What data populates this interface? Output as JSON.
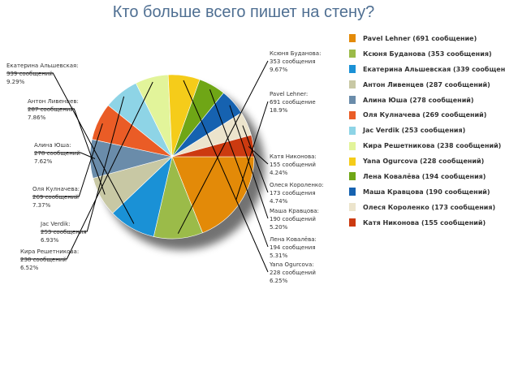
{
  "chart_data": {
    "type": "pie",
    "title": "Кто больше всего пишет на стену?",
    "slices": [
      {
        "name": "Pavel Lehner",
        "value": 691,
        "callout": [
          "Pavel Lehner:",
          "691 сообщение",
          "18.9%"
        ],
        "legend": "Pavel Lehner (691 сообщение)",
        "color": "#e38a08"
      },
      {
        "name": "Ксюня Буданова",
        "value": 353,
        "callout": [
          "Ксюня Буданова:",
          "353 сообщения",
          "9.67%"
        ],
        "legend": "Ксюня Буданова (353 сообщения)",
        "color": "#9bbb49"
      },
      {
        "name": "Екатерина Альшевская",
        "value": 339,
        "callout": [
          "Екатерина Альшевская:",
          "339 сообщений",
          "9.29%"
        ],
        "legend": "Екатерина Альшевская (339 сообщен",
        "color": "#1a91d6"
      },
      {
        "name": "Антон Ливенцев",
        "value": 287,
        "callout": [
          "Антон Ливенцев:",
          "287 сообщений",
          "7.86%"
        ],
        "legend": "Антон Ливенцев (287 сообщений)",
        "color": "#c8c8a4"
      },
      {
        "name": "Алина Юша",
        "value": 278,
        "callout": [
          "Алина Юша:",
          "278 сообщений",
          "7.62%"
        ],
        "legend": "Алина Юша (278 сообщений)",
        "color": "#6a8caa"
      },
      {
        "name": "Оля Кулначева",
        "value": 269,
        "callout": [
          "Оля Кулначева:",
          "269 сообщений",
          "7.37%"
        ],
        "legend": "Оля Кулначева (269 сообщений)",
        "color": "#ea5c26"
      },
      {
        "name": "Jac Verdik",
        "value": 253,
        "callout": [
          "Jac Verdik:",
          "253 сообщения",
          "6.93%"
        ],
        "legend": "Jac Verdik (253 сообщения)",
        "color": "#8ed4e6"
      },
      {
        "name": "Кира Решетникова",
        "value": 238,
        "callout": [
          "Кира Решетникова:",
          "238 сообщений",
          "6.52%"
        ],
        "legend": "Кира Решетникова (238 сообщений)",
        "color": "#e2f49a"
      },
      {
        "name": "Yana Ogurcova",
        "value": 228,
        "callout": [
          "Yana Ogurcova:",
          "228 сообщений",
          "6.25%"
        ],
        "legend": "Yana Ogurcova (228 сообщений)",
        "color": "#f5cc1a"
      },
      {
        "name": "Лена Ковалёва",
        "value": 194,
        "callout": [
          "Лена Ковалёва:",
          "194 сообщения",
          "5.31%"
        ],
        "legend": "Лена Ковалёва (194 сообщения)",
        "color": "#6fa616"
      },
      {
        "name": "Маша Кравцова",
        "value": 190,
        "callout": [
          "Маша Кравцова:",
          "190 сообщений",
          "5.20%"
        ],
        "legend": "Маша Кравцова (190 сообщений)",
        "color": "#1662b0"
      },
      {
        "name": "Олеся Короленко",
        "value": 173,
        "callout": [
          "Олеся Короленко:",
          "173 сообщения",
          "4.74%"
        ],
        "legend": "Олеся Короленко (173 сообщения)",
        "color": "#ece4cc"
      },
      {
        "name": "Катя Никонова",
        "value": 155,
        "callout": [
          "Катя Никонова:",
          "155 сообщений",
          "4.24%"
        ],
        "legend": "Катя Никонова (155 сообщений)",
        "color": "#cc3a10"
      }
    ],
    "legend_position": "right"
  }
}
